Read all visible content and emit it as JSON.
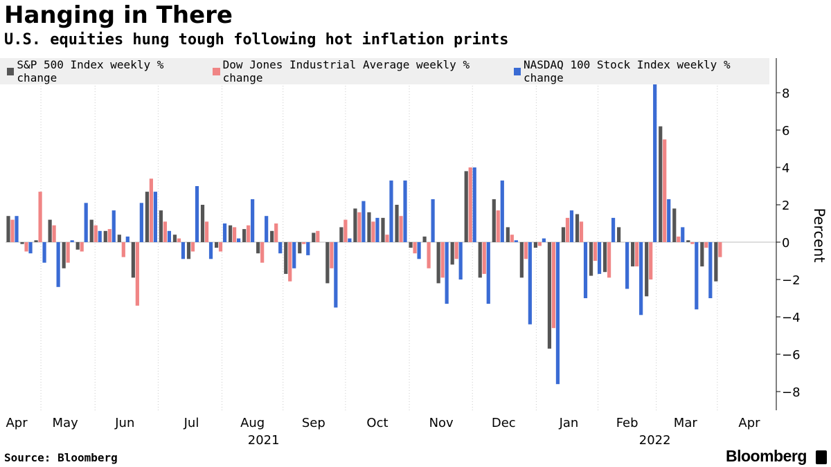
{
  "header": {
    "title": "Hanging in There",
    "subtitle": "U.S. equities hung tough following hot inflation prints"
  },
  "footer": {
    "source": "Source: Bloomberg",
    "brand": "Bloomberg"
  },
  "chart_data": {
    "type": "bar",
    "title": "Hanging in There",
    "subtitle": "U.S. equities hung tough following hot inflation prints",
    "ylabel": "Percent",
    "xlabel": "",
    "ylim": [
      -9,
      9.5
    ],
    "yticks": [
      -8,
      -6,
      -4,
      -2,
      0,
      2,
      4,
      6,
      8
    ],
    "grid": "vertical dotted lines at month starts",
    "legend_position": "top",
    "x_month_labels": [
      "Apr",
      "May",
      "Jun",
      "Jul",
      "Aug",
      "Sep",
      "Oct",
      "Nov",
      "Dec",
      "Jan",
      "Feb",
      "Mar",
      "Apr"
    ],
    "month_positions": [
      0.8,
      4.3,
      8.6,
      13.4,
      17.8,
      22.2,
      26.8,
      31.4,
      35.9,
      40.6,
      44.8,
      49.0,
      53.6
    ],
    "year_labels": [
      {
        "label": "2021",
        "position": 18.6
      },
      {
        "label": "2022",
        "position": 46.8
      }
    ],
    "week_count": 55,
    "series": [
      {
        "name": "S&P 500 Index weekly % change",
        "color": "#555555",
        "values": [
          1.4,
          -0.1,
          0.1,
          1.2,
          -1.4,
          -0.4,
          1.2,
          0.6,
          0.4,
          -1.9,
          2.7,
          1.7,
          0.4,
          -0.9,
          2.0,
          -0.3,
          0.9,
          0.7,
          -0.6,
          0.6,
          -1.7,
          -0.6,
          0.5,
          -2.2,
          0.8,
          1.8,
          1.6,
          1.3,
          2.0,
          -0.3,
          0.3,
          -2.2,
          -1.2,
          3.8,
          -1.9,
          2.3,
          0.8,
          -1.9,
          -0.3,
          -5.7,
          0.8,
          1.5,
          -1.8,
          -1.6,
          0.8,
          -1.3,
          -2.9,
          6.2,
          1.8,
          0.1,
          -1.3,
          -2.1,
          0.0,
          0.0,
          0.0
        ]
      },
      {
        "name": "Dow Jones Industrial Average weekly % change",
        "color": "#f08585",
        "values": [
          1.2,
          -0.5,
          2.7,
          0.9,
          -1.1,
          -0.5,
          0.9,
          0.7,
          -0.8,
          -3.4,
          3.4,
          1.1,
          0.2,
          -0.5,
          1.1,
          -0.5,
          0.8,
          0.9,
          -1.1,
          1.0,
          -2.1,
          -0.1,
          0.6,
          -1.4,
          1.2,
          1.6,
          1.1,
          0.4,
          1.4,
          -0.6,
          -1.4,
          -1.9,
          -0.9,
          4.0,
          -1.7,
          1.7,
          0.4,
          -0.9,
          -0.2,
          -4.6,
          1.3,
          1.1,
          -1.0,
          -1.9,
          0.0,
          -1.3,
          -2.0,
          5.5,
          0.3,
          -0.1,
          -0.3,
          -0.8,
          0.0,
          0.0,
          0.0
        ]
      },
      {
        "name": "NASDAQ 100 Stock Index weekly % change",
        "color": "#3a6bd4",
        "values": [
          1.4,
          -0.6,
          -1.1,
          -2.4,
          0.1,
          2.1,
          0.6,
          1.7,
          0.3,
          2.1,
          2.7,
          0.6,
          -0.9,
          3.0,
          -0.9,
          1.0,
          0.2,
          2.3,
          1.4,
          -0.6,
          -1.4,
          -0.7,
          0.0,
          -3.5,
          0.2,
          2.2,
          1.3,
          3.3,
          3.3,
          -0.9,
          2.3,
          -3.3,
          -2.0,
          4.0,
          -3.3,
          3.3,
          0.1,
          -4.4,
          0.2,
          -7.6,
          1.7,
          -3.0,
          -1.7,
          1.3,
          -2.5,
          -3.9,
          8.5,
          2.3,
          0.8,
          -3.6,
          -3.0,
          0.0,
          0.0,
          0.0,
          0.0
        ]
      }
    ]
  }
}
